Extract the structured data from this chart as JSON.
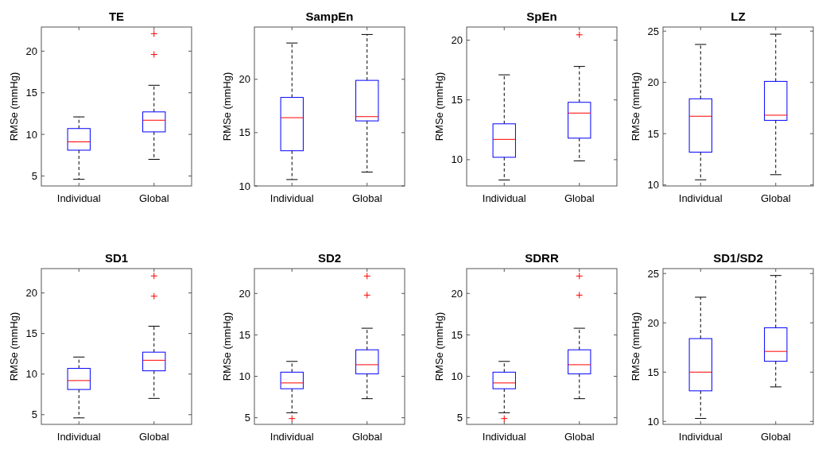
{
  "chart_data": [
    {
      "type": "box",
      "title": "TE",
      "ylabel": "RMSe (mmHg)",
      "categories": [
        "Individual",
        "Global"
      ],
      "color": "#0000ff",
      "ylim": [
        3.8,
        22.9
      ],
      "yticks": [
        5,
        10,
        15,
        20
      ],
      "boxes": [
        {
          "low": 4.6,
          "q1": 8.1,
          "median": 9.1,
          "q3": 10.7,
          "high": 12.1
        },
        {
          "low": 7.0,
          "q1": 10.3,
          "median": 11.7,
          "q3": 12.7,
          "high": 15.9,
          "outliers": [
            22.1,
            19.6
          ]
        }
      ]
    },
    {
      "type": "box",
      "title": "SampEn",
      "ylabel": "RMSe (mmHg)",
      "categories": [
        "Individual",
        "Global"
      ],
      "color": "#0000ff",
      "ylim": [
        10,
        24.9
      ],
      "yticks": [
        10,
        15,
        20
      ],
      "boxes": [
        {
          "low": 10.6,
          "q1": 13.3,
          "median": 16.4,
          "q3": 18.3,
          "high": 23.4
        },
        {
          "low": 11.3,
          "q1": 16.1,
          "median": 16.5,
          "q3": 19.9,
          "high": 24.2
        }
      ]
    },
    {
      "type": "box",
      "title": "SpEn",
      "ylabel": "RMSe (mmHg)",
      "categories": [
        "Individual",
        "Global"
      ],
      "color": "#0000ff",
      "ylim": [
        7.8,
        21.1
      ],
      "yticks": [
        10,
        15,
        20
      ],
      "boxes": [
        {
          "low": 8.3,
          "q1": 10.2,
          "median": 11.7,
          "q3": 13.0,
          "high": 17.1
        },
        {
          "low": 9.9,
          "q1": 11.8,
          "median": 13.9,
          "q3": 14.8,
          "high": 17.8,
          "outliers": [
            20.45
          ]
        }
      ]
    },
    {
      "type": "box",
      "title": "LZ",
      "ylabel": "RMSe (mmHg)",
      "categories": [
        "Individual",
        "Global"
      ],
      "color": "#0000ff",
      "ylim": [
        9.9,
        25.4
      ],
      "yticks": [
        10,
        15,
        20,
        25
      ],
      "boxes": [
        {
          "low": 10.5,
          "q1": 13.2,
          "median": 16.7,
          "q3": 18.4,
          "high": 23.7
        },
        {
          "low": 11.0,
          "q1": 16.3,
          "median": 16.8,
          "q3": 20.1,
          "high": 24.7
        }
      ]
    },
    {
      "type": "box",
      "title": "SD1",
      "ylabel": "RMSe (mmHg)",
      "categories": [
        "Individual",
        "Global"
      ],
      "color": "#0000ff",
      "ylim": [
        3.8,
        23.0
      ],
      "yticks": [
        5,
        10,
        15,
        20
      ],
      "boxes": [
        {
          "low": 4.6,
          "q1": 8.1,
          "median": 9.2,
          "q3": 10.7,
          "high": 12.1
        },
        {
          "low": 7.0,
          "q1": 10.4,
          "median": 11.7,
          "q3": 12.7,
          "high": 15.9,
          "outliers": [
            22.1,
            19.6
          ]
        }
      ]
    },
    {
      "type": "box",
      "title": "SD2",
      "ylabel": "RMSe (mmHg)",
      "categories": [
        "Individual",
        "Global"
      ],
      "color": "#0000ff",
      "ylim": [
        4.2,
        23.0
      ],
      "yticks": [
        5,
        10,
        15,
        20
      ],
      "boxes": [
        {
          "low": 5.6,
          "q1": 8.5,
          "median": 9.2,
          "q3": 10.5,
          "high": 11.8,
          "outliers": [
            4.9
          ]
        },
        {
          "low": 7.3,
          "q1": 10.3,
          "median": 11.4,
          "q3": 13.2,
          "high": 15.8,
          "outliers": [
            22.1,
            19.8
          ]
        }
      ]
    },
    {
      "type": "box",
      "title": "SDRR",
      "ylabel": "RMSe (mmHg)",
      "categories": [
        "Individual",
        "Global"
      ],
      "color": "#0000ff",
      "ylim": [
        4.2,
        23.0
      ],
      "yticks": [
        5,
        10,
        15,
        20
      ],
      "boxes": [
        {
          "low": 5.6,
          "q1": 8.5,
          "median": 9.2,
          "q3": 10.5,
          "high": 11.8,
          "outliers": [
            4.9
          ]
        },
        {
          "low": 7.3,
          "q1": 10.3,
          "median": 11.4,
          "q3": 13.2,
          "high": 15.8,
          "outliers": [
            22.1,
            19.8
          ]
        }
      ]
    },
    {
      "type": "box",
      "title": "SD1/SD2",
      "ylabel": "RMSe (mmHg)",
      "categories": [
        "Individual",
        "Global"
      ],
      "color": "#0000ff",
      "ylim": [
        9.7,
        25.5
      ],
      "yticks": [
        10,
        15,
        20,
        25
      ],
      "boxes": [
        {
          "low": 10.3,
          "q1": 13.1,
          "median": 15.0,
          "q3": 18.4,
          "high": 22.6
        },
        {
          "low": 13.5,
          "q1": 16.1,
          "median": 17.1,
          "q3": 19.5,
          "high": 24.8
        }
      ]
    }
  ]
}
